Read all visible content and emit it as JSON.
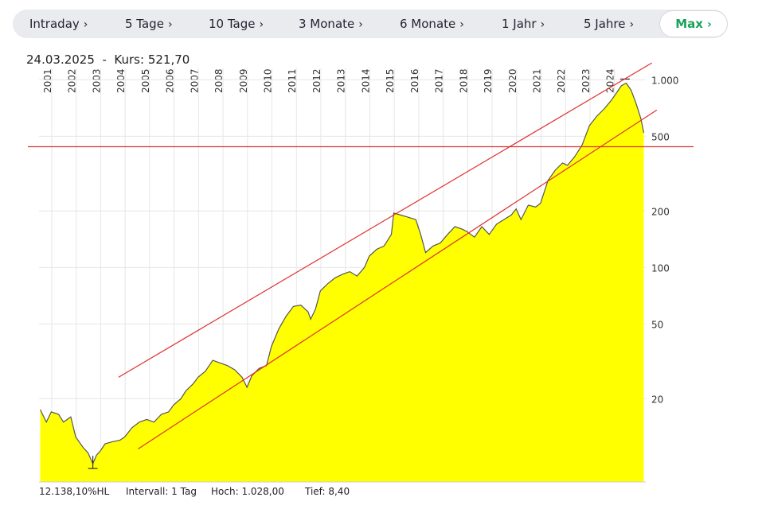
{
  "tabs": [
    {
      "label": "Intraday",
      "active": false
    },
    {
      "label": "5 Tage",
      "active": false
    },
    {
      "label": "10 Tage",
      "active": false
    },
    {
      "label": "3 Monate",
      "active": false
    },
    {
      "label": "6 Monate",
      "active": false
    },
    {
      "label": "1 Jahr",
      "active": false
    },
    {
      "label": "5 Jahre",
      "active": false
    },
    {
      "label": "Max",
      "active": true
    }
  ],
  "chevron": "›",
  "header": {
    "date": "24.03.2025",
    "separator": "-",
    "price_label": "Kurs:",
    "price_value": "521,70"
  },
  "footer": {
    "performance": "12.138,10%HL",
    "interval_label": "Intervall:",
    "interval_value": "1 Tag",
    "high_label": "Hoch:",
    "high_value": "1.028,00",
    "low_label": "Tief:",
    "low_value": "8,40"
  },
  "colors": {
    "fill": "#ffff00",
    "line": "#555555",
    "trendline": "#e03030",
    "accent": "#19a35a",
    "grid": "#e6e6e6"
  },
  "chart_data": {
    "type": "area",
    "y_scale": "log",
    "x_tick_labels": [
      "2001",
      "2002",
      "2003",
      "2004",
      "2005",
      "2006",
      "2007",
      "2008",
      "2009",
      "2010",
      "2011",
      "2012",
      "2013",
      "2014",
      "2015",
      "2016",
      "2017",
      "2018",
      "2019",
      "2020",
      "2021",
      "2022",
      "2023",
      "2024"
    ],
    "y_tick_values": [
      20,
      50,
      100,
      200,
      500,
      1000
    ],
    "y_tick_labels": [
      "20",
      "50",
      "100",
      "200",
      "500",
      "1.000"
    ],
    "xlim": [
      2000.5,
      2025.3
    ],
    "ylim": [
      7.2,
      1150
    ],
    "series": [
      {
        "x": [
          2000.55,
          2000.8,
          2001.0,
          2001.3,
          2001.5,
          2001.8,
          2002.0,
          2002.3,
          2002.5,
          2002.7,
          2002.85,
          2003.0,
          2003.2,
          2003.5,
          2003.8,
          2004.0,
          2004.3,
          2004.6,
          2004.9,
          2005.2,
          2005.5,
          2005.8,
          2006.0,
          2006.3,
          2006.5,
          2006.8,
          2007.0,
          2007.3,
          2007.6,
          2007.9,
          2008.2,
          2008.5,
          2008.8,
          2009.0,
          2009.2,
          2009.5,
          2009.8,
          2010.0,
          2010.3,
          2010.6,
          2010.9,
          2011.2,
          2011.5,
          2011.6,
          2011.8,
          2012.0,
          2012.3,
          2012.6,
          2012.9,
          2013.2,
          2013.5,
          2013.8,
          2014.0,
          2014.3,
          2014.6,
          2014.9,
          2015.0,
          2015.3,
          2015.6,
          2015.9,
          2016.1,
          2016.3,
          2016.6,
          2016.9,
          2017.2,
          2017.5,
          2017.8,
          2018.0,
          2018.3,
          2018.6,
          2018.9,
          2019.2,
          2019.5,
          2019.8,
          2020.0,
          2020.2,
          2020.5,
          2020.8,
          2021.0,
          2021.3,
          2021.6,
          2021.9,
          2022.1,
          2022.4,
          2022.7,
          2023.0,
          2023.3,
          2023.6,
          2023.9,
          2024.1,
          2024.3,
          2024.5,
          2024.7,
          2024.9,
          2025.1,
          2025.22
        ],
        "y": [
          17.5,
          15.0,
          17.0,
          16.5,
          15.0,
          16.0,
          12.5,
          11.0,
          10.3,
          9.0,
          10.0,
          10.5,
          11.5,
          11.8,
          12.0,
          12.5,
          14.0,
          15.0,
          15.5,
          15.0,
          16.5,
          17.0,
          18.5,
          20.0,
          22.0,
          24.0,
          26.0,
          28.0,
          32.0,
          31.0,
          30.0,
          28.5,
          26.0,
          23.0,
          26.5,
          29.0,
          30.0,
          38.0,
          47.0,
          55.0,
          62.0,
          63.0,
          58.0,
          53.0,
          60.0,
          75.0,
          82.0,
          88.0,
          92.0,
          95.0,
          90.0,
          100.0,
          115.0,
          125.0,
          130.0,
          150.0,
          195.0,
          190.0,
          185.0,
          180.0,
          150.0,
          120.0,
          130.0,
          135.0,
          150.0,
          165.0,
          160.0,
          155.0,
          145.0,
          165.0,
          150.0,
          170.0,
          180.0,
          190.0,
          205.0,
          180.0,
          215.0,
          210.0,
          220.0,
          290.0,
          330.0,
          360.0,
          350.0,
          390.0,
          450.0,
          570.0,
          640.0,
          700.0,
          780.0,
          850.0,
          930.0,
          960.0,
          880.0,
          750.0,
          620.0,
          521.7
        ]
      }
    ],
    "horizontal_line": 440,
    "channel_upper": [
      [
        2003.75,
        26.0
      ],
      [
        2025.55,
        1230
      ]
    ],
    "channel_lower": [
      [
        2004.55,
        10.8
      ],
      [
        2025.75,
        690
      ]
    ]
  }
}
